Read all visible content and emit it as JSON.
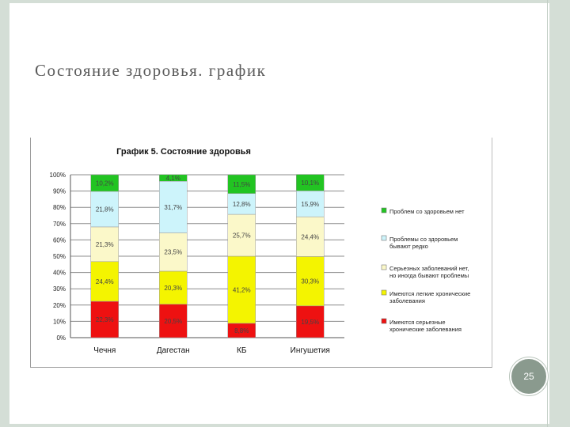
{
  "slide": {
    "title": "Состояние здоровья. график",
    "page_number": "25"
  },
  "colors": {
    "green": "#22c422",
    "light_blue": "#cdf4fb",
    "light_yellow": "#fbf8c9",
    "yellow": "#f4f400",
    "red": "#ee1111",
    "frame": "#d4ded6",
    "badge": "#8a9a8e"
  },
  "chart_data": {
    "type": "bar",
    "stacked": true,
    "title": "График 5. Состояние здоровья",
    "categories": [
      "Чечня",
      "Дагестан",
      "КБ",
      "Ингушетия"
    ],
    "ylim": [
      0,
      100
    ],
    "y_ticks": [
      "0%",
      "10%",
      "20%",
      "30%",
      "40%",
      "50%",
      "60%",
      "70%",
      "80%",
      "90%",
      "100%"
    ],
    "grid": true,
    "legend_position": "right",
    "series": [
      {
        "name": "Имеются серьезные хронические заболевания",
        "color": "#ee1111",
        "values": [
          22.3,
          20.5,
          8.8,
          19.5
        ],
        "labels": [
          "22,3%",
          "20,5%",
          "8,8%",
          "19,5%"
        ]
      },
      {
        "name": "Имеются легкие хронические заболевания",
        "color": "#f4f400",
        "values": [
          24.4,
          20.3,
          41.2,
          30.3
        ],
        "labels": [
          "24,4%",
          "20,3%",
          "41,2%",
          "30,3%"
        ]
      },
      {
        "name": "Серьезных заболеваний нет, но иногда бывают проблемы",
        "color": "#fbf8c9",
        "values": [
          21.3,
          23.5,
          25.7,
          24.4
        ],
        "labels": [
          "21,3%",
          "23,5%",
          "25,7%",
          "24,4%"
        ]
      },
      {
        "name": "Проблемы со здоровьем бывают редко",
        "color": "#cdf4fb",
        "values": [
          21.8,
          31.7,
          12.8,
          15.9
        ],
        "labels": [
          "21,8%",
          "31,7%",
          "12,8%",
          "15,9%"
        ]
      },
      {
        "name": "Проблем со здоровьем нет",
        "color": "#22c422",
        "values": [
          10.2,
          4.1,
          11.5,
          10.1
        ],
        "labels": [
          "10,2%",
          "4,1%",
          "11,5%",
          "10,1%"
        ]
      }
    ]
  }
}
